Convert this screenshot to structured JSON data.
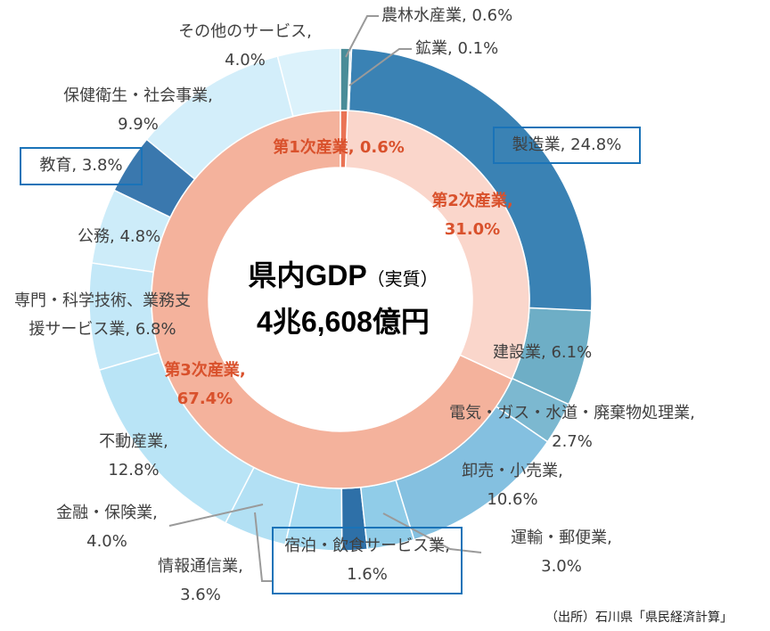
{
  "chart_data": {
    "type": "donut",
    "rings": [
      {
        "categories": [
          "第1次産業,",
          "第2次産業,",
          "第3次産業,"
        ],
        "values": [
          0.6,
          31.0,
          67.4
        ],
        "value_labels": [
          "0.6%",
          "31.0%",
          "67.4%"
        ],
        "colors": [
          "#ea7354",
          "#fad6cb",
          "#f4b29c"
        ]
      },
      {
        "categories": [
          "農林水産業,",
          "鉱業,",
          "製造業,",
          "建設業,",
          "電気・ガス・水道・廃棄物処理業,",
          "卸売・小売業,",
          "運輸・郵便業,",
          "宿泊・飲食サービス業,",
          "情報通信業,",
          "金融・保険業,",
          "不動産業,",
          "専門・科学技術、業務支援サービス業,",
          "公務,",
          "教育,",
          "保健衛生・社会事業,",
          "その他のサービス,"
        ],
        "values": [
          0.6,
          0.1,
          24.8,
          6.1,
          2.7,
          10.6,
          3.0,
          1.6,
          3.6,
          4.0,
          12.8,
          6.8,
          4.8,
          3.8,
          9.9,
          4.0
        ],
        "value_labels": [
          "0.6%",
          "0.1%",
          "24.8%",
          "6.1%",
          "2.7%",
          "10.6%",
          "3.0%",
          "1.6%",
          "3.6%",
          "4.0%",
          "12.8%",
          "6.8%",
          "4.8%",
          "3.8%",
          "9.9%",
          "4.0%"
        ],
        "colors": [
          "#4a8c98",
          "#3f7fa0",
          "#3a82b4",
          "#6eaec6",
          "#7cb8d0",
          "#84c0e0",
          "#90cce8",
          "#2e70a8",
          "#a6dbf2",
          "#b2e0f4",
          "#b9e4f6",
          "#c3e8f8",
          "#cdecf9",
          "#3a78ae",
          "#d3eefa",
          "#dcf2fb"
        ]
      }
    ],
    "center_title": "県内GDP",
    "center_subtitle": "（実質）",
    "center_value": "4兆6,608億円",
    "source": "（出所）石川県「県民経済計算」"
  }
}
